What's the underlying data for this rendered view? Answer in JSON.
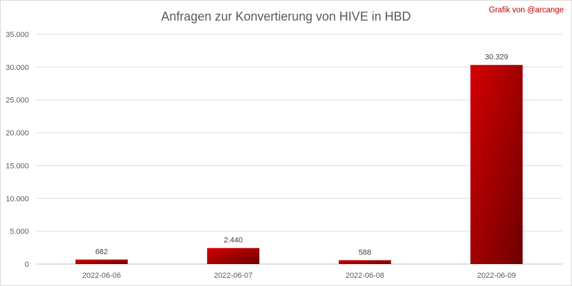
{
  "chart_data": {
    "type": "bar",
    "title": "Anfragen zur Konvertierung von HIVE in HBD",
    "credit": "Grafik von @arcange",
    "categories": [
      "2022-06-06",
      "2022-06-07",
      "2022-06-08",
      "2022-06-09"
    ],
    "values": [
      682,
      2440,
      588,
      30329
    ],
    "value_labels": [
      "682",
      "2.440",
      "588",
      "30.329"
    ],
    "ylim": [
      0,
      35000
    ],
    "y_ticks": [
      0,
      5000,
      10000,
      15000,
      20000,
      25000,
      30000,
      35000
    ],
    "y_tick_labels": [
      "0",
      "5.000",
      "10.000",
      "15.000",
      "20.000",
      "25.000",
      "30.000",
      "35.000"
    ],
    "grid": true,
    "colors": {
      "bar_light": "#d40000",
      "bar_dark": "#6e0000",
      "grid": "#d9d9d9",
      "credit": "#c00000"
    }
  }
}
